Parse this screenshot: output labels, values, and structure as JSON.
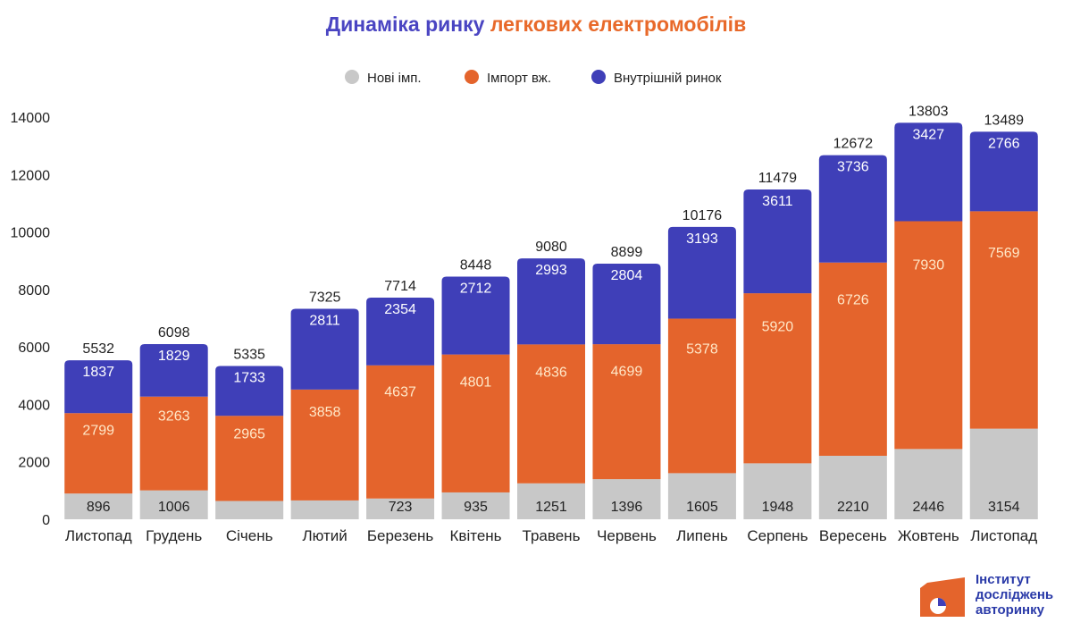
{
  "chart_data": {
    "type": "bar",
    "stacked": true,
    "title_part1": "Динаміка ринку",
    "title_part2": "легкових електромобілів",
    "categories": [
      "Листопад",
      "Грудень",
      "Січень",
      "Лютий",
      "Березень",
      "Квітень",
      "Травень",
      "Червень",
      "Липень",
      "Серпень",
      "Вересень",
      "Жовтень",
      "Листопад"
    ],
    "series": [
      {
        "name": "Нові імп.",
        "color": "#c8c8c8",
        "values": [
          896,
          1006,
          637,
          656,
          723,
          935,
          1251,
          1396,
          1605,
          1948,
          2210,
          2446,
          3154
        ],
        "labels": [
          "896",
          "1006",
          "",
          "",
          "723",
          "935",
          "1251",
          "1396",
          "1605",
          "1948",
          "2210",
          "2446",
          "3154"
        ]
      },
      {
        "name": "Імпорт вж.",
        "color": "#e4642c",
        "values": [
          2799,
          3263,
          2965,
          3858,
          4637,
          4801,
          4836,
          4699,
          5378,
          5920,
          6726,
          7930,
          7569
        ],
        "labels": [
          "2799",
          "3263",
          "2965",
          "3858",
          "4637",
          "4801",
          "4836",
          "4699",
          "5378",
          "5920",
          "6726",
          "7930",
          "7569"
        ]
      },
      {
        "name": "Внутрішній ринок",
        "color": "#3f3fb8",
        "values": [
          1837,
          1829,
          1733,
          2811,
          2354,
          2712,
          2993,
          2804,
          3193,
          3611,
          3736,
          3427,
          2766
        ],
        "labels": [
          "1837",
          "1829",
          "1733",
          "2811",
          "2354",
          "2712",
          "2993",
          "2804",
          "3193",
          "3611",
          "3736",
          "3427",
          "2766"
        ]
      }
    ],
    "totals": [
      5532,
      6098,
      5335,
      7325,
      7714,
      8448,
      9080,
      8899,
      10176,
      11479,
      12672,
      13803,
      13489
    ],
    "yticks": [
      0,
      2000,
      4000,
      6000,
      8000,
      10000,
      12000,
      14000
    ],
    "ylim": [
      0,
      14000
    ],
    "legend_position": "top",
    "grid": false
  },
  "logo": {
    "line1": "Інститут",
    "line2": "досліджень",
    "line3": "авторинку"
  }
}
